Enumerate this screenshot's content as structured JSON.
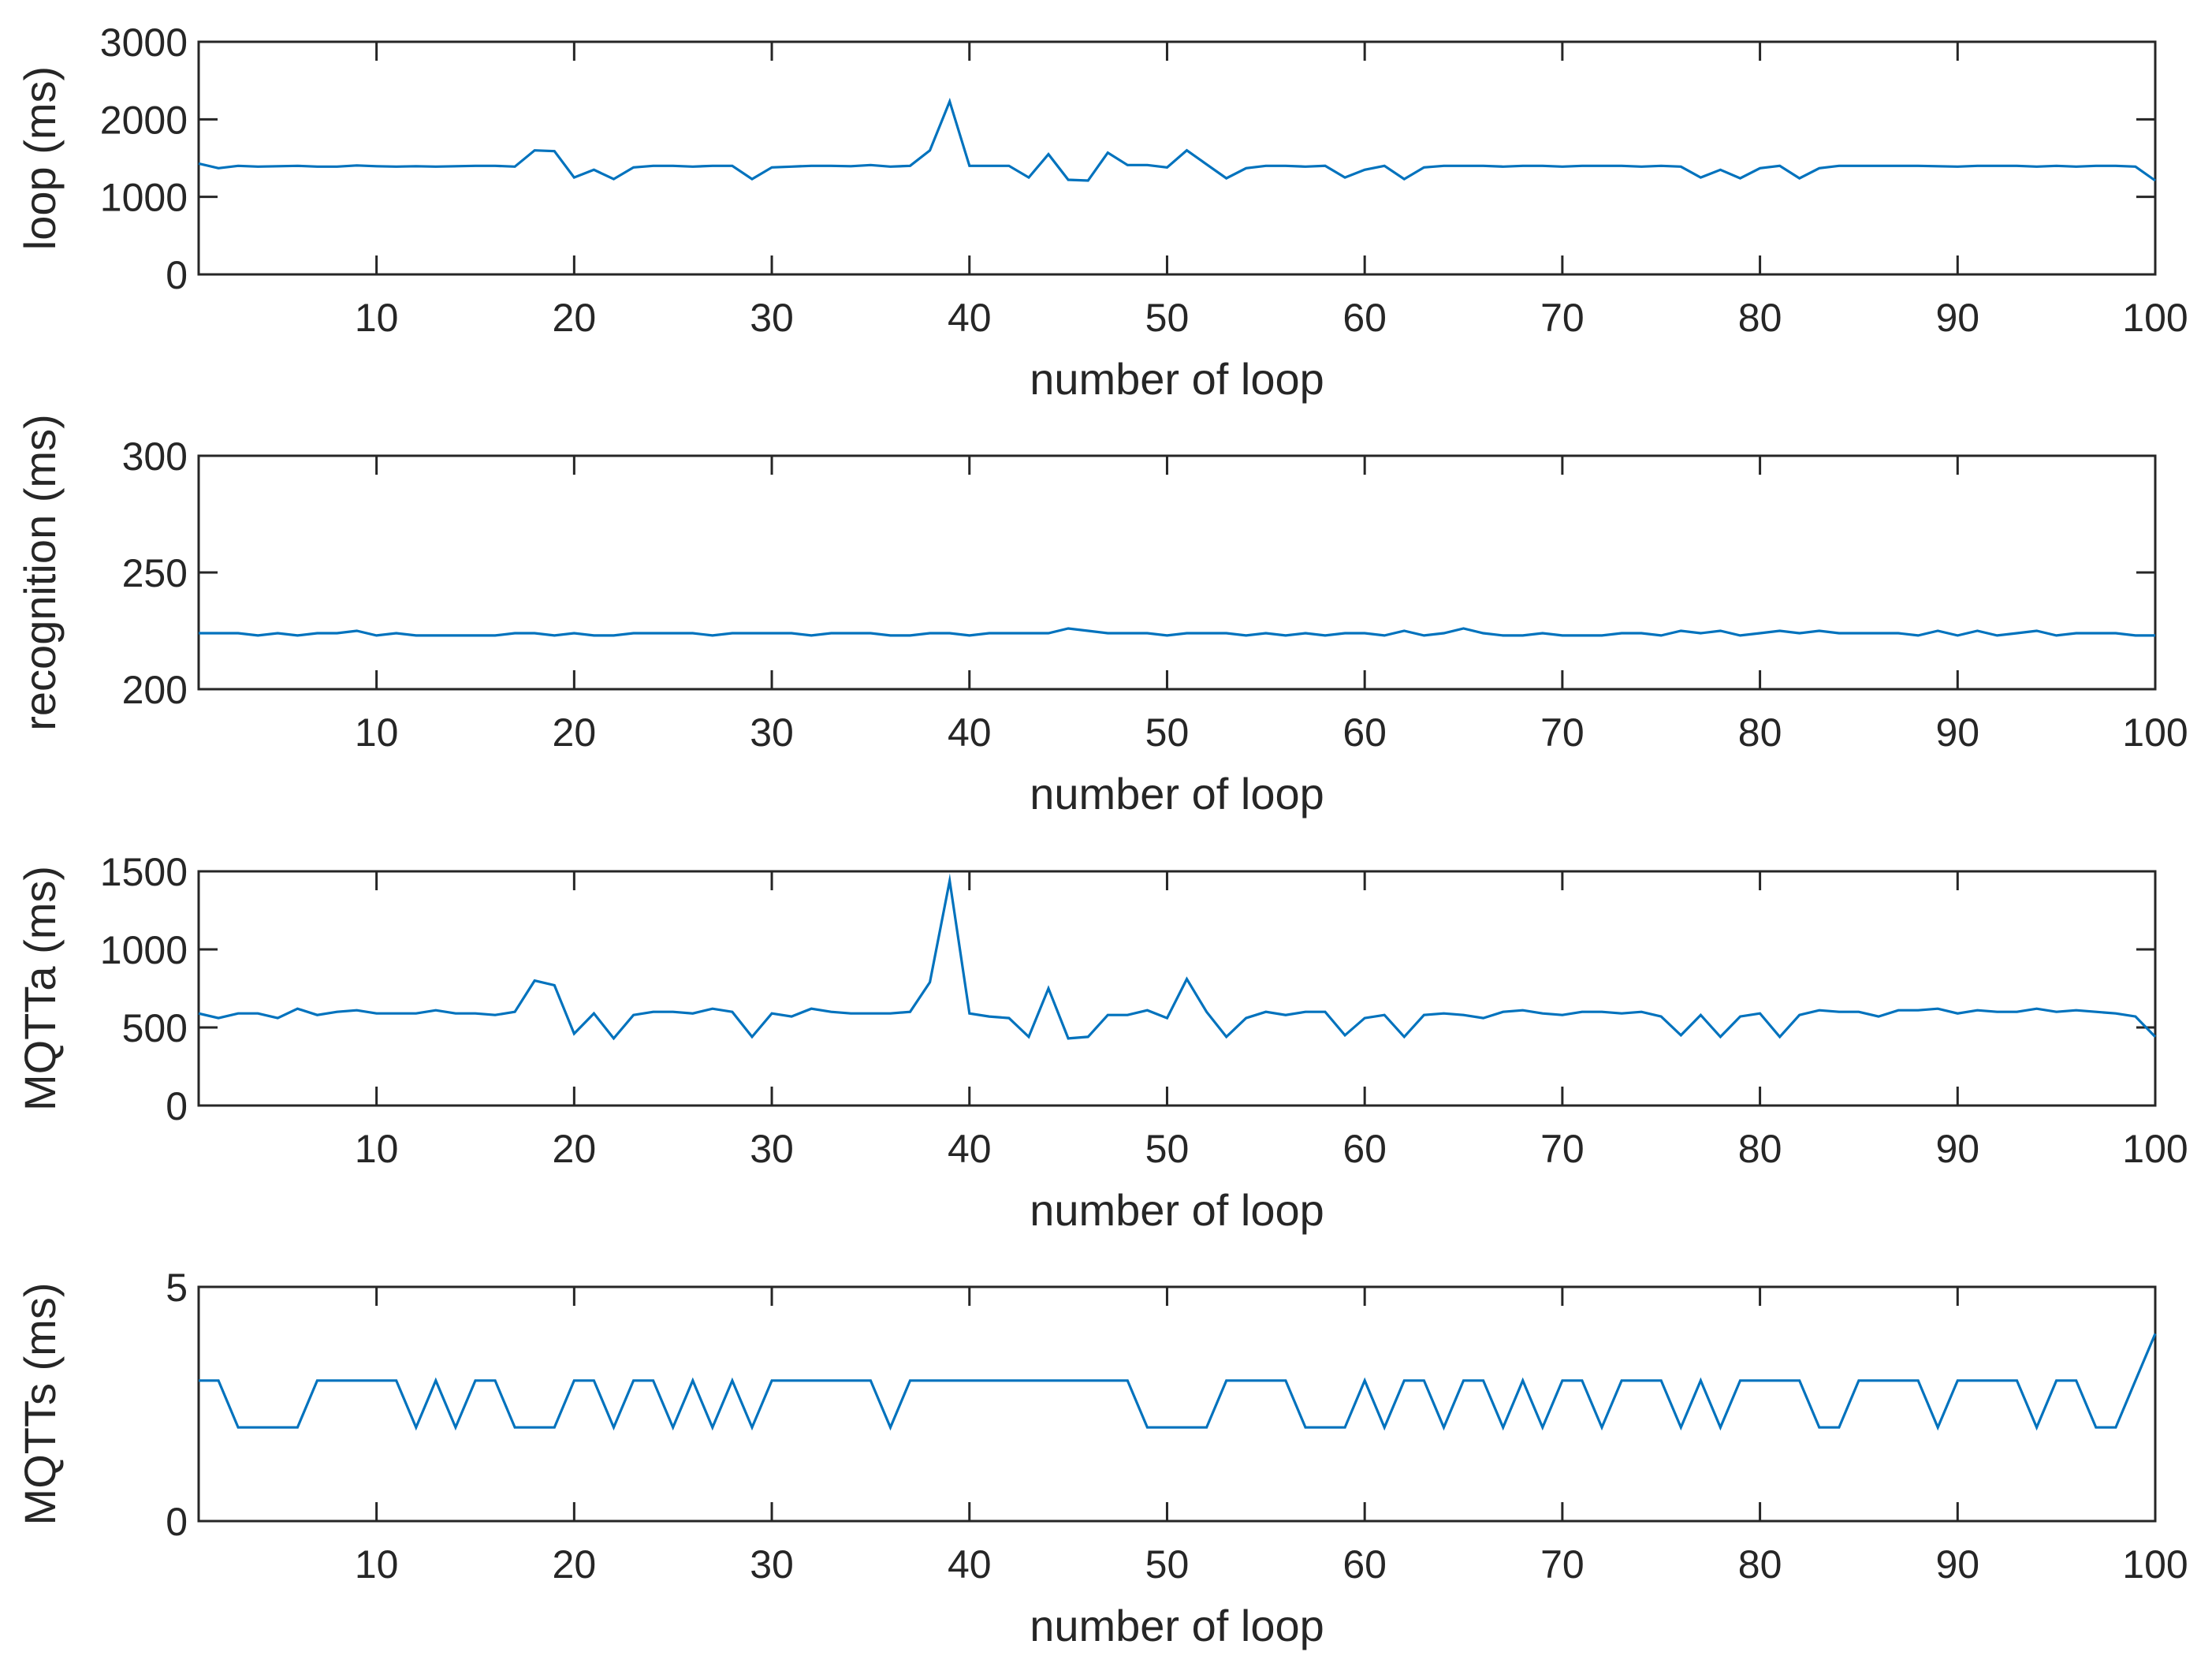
{
  "chart_data": [
    {
      "type": "line",
      "xlabel": "number of loop",
      "ylabel": "loop (ms)",
      "xlim": [
        1,
        100
      ],
      "ylim": [
        0,
        3000
      ],
      "xticks": [
        10,
        20,
        30,
        40,
        50,
        60,
        70,
        80,
        90,
        100
      ],
      "yticks": [
        0,
        1000,
        2000,
        3000
      ],
      "grid": false,
      "line_color": "#0072BD",
      "series": [
        {
          "values": [
            1430,
            1370,
            1400,
            1390,
            1395,
            1400,
            1390,
            1390,
            1405,
            1395,
            1390,
            1395,
            1390,
            1395,
            1400,
            1400,
            1390,
            1600,
            1590,
            1250,
            1350,
            1230,
            1380,
            1400,
            1400,
            1390,
            1400,
            1400,
            1230,
            1380,
            1390,
            1400,
            1400,
            1395,
            1410,
            1390,
            1400,
            1600,
            2230,
            1400,
            1400,
            1400,
            1250,
            1550,
            1220,
            1210,
            1570,
            1410,
            1410,
            1380,
            1600,
            1420,
            1240,
            1370,
            1400,
            1400,
            1390,
            1400,
            1250,
            1350,
            1400,
            1230,
            1380,
            1400,
            1400,
            1400,
            1390,
            1400,
            1400,
            1390,
            1400,
            1400,
            1400,
            1390,
            1400,
            1390,
            1250,
            1350,
            1240,
            1370,
            1400,
            1240,
            1370,
            1400,
            1400,
            1400,
            1400,
            1400,
            1395,
            1390,
            1400,
            1400,
            1400,
            1390,
            1400,
            1390,
            1400,
            1400,
            1390,
            1210
          ]
        }
      ]
    },
    {
      "type": "line",
      "xlabel": "number of loop",
      "ylabel": "recognition (ms)",
      "xlim": [
        1,
        100
      ],
      "ylim": [
        200,
        300
      ],
      "xticks": [
        10,
        20,
        30,
        40,
        50,
        60,
        70,
        80,
        90,
        100
      ],
      "yticks": [
        200,
        250,
        300
      ],
      "grid": false,
      "line_color": "#0072BD",
      "series": [
        {
          "values": [
            224,
            224,
            224,
            223,
            224,
            223,
            224,
            224,
            225,
            223,
            224,
            223,
            223,
            223,
            223,
            223,
            224,
            224,
            223,
            224,
            223,
            223,
            224,
            224,
            224,
            224,
            223,
            224,
            224,
            224,
            224,
            223,
            224,
            224,
            224,
            223,
            223,
            224,
            224,
            223,
            224,
            224,
            224,
            224,
            226,
            225,
            224,
            224,
            224,
            223,
            224,
            224,
            224,
            223,
            224,
            223,
            224,
            223,
            224,
            224,
            223,
            225,
            223,
            224,
            226,
            224,
            223,
            223,
            224,
            223,
            223,
            223,
            224,
            224,
            223,
            225,
            224,
            225,
            223,
            224,
            225,
            224,
            225,
            224,
            224,
            224,
            224,
            223,
            225,
            223,
            225,
            223,
            224,
            225,
            223,
            224,
            224,
            224,
            223,
            223
          ]
        }
      ]
    },
    {
      "type": "line",
      "xlabel": "number of loop",
      "ylabel": "MQTTa (ms)",
      "xlim": [
        1,
        100
      ],
      "ylim": [
        0,
        1500
      ],
      "xticks": [
        10,
        20,
        30,
        40,
        50,
        60,
        70,
        80,
        90,
        100
      ],
      "yticks": [
        0,
        500,
        1000,
        1500
      ],
      "grid": false,
      "line_color": "#0072BD",
      "series": [
        {
          "values": [
            590,
            560,
            590,
            590,
            560,
            620,
            580,
            600,
            610,
            590,
            590,
            590,
            610,
            590,
            590,
            580,
            600,
            800,
            770,
            460,
            590,
            430,
            580,
            600,
            600,
            590,
            620,
            600,
            440,
            590,
            570,
            620,
            600,
            590,
            590,
            590,
            600,
            790,
            1440,
            590,
            570,
            560,
            440,
            750,
            430,
            440,
            580,
            580,
            610,
            560,
            810,
            600,
            440,
            560,
            600,
            580,
            600,
            600,
            450,
            560,
            580,
            440,
            580,
            590,
            580,
            560,
            600,
            610,
            590,
            580,
            600,
            600,
            590,
            600,
            570,
            450,
            580,
            440,
            570,
            590,
            440,
            580,
            610,
            600,
            600,
            570,
            610,
            610,
            620,
            590,
            610,
            600,
            600,
            620,
            600,
            610,
            600,
            590,
            570,
            440
          ]
        }
      ]
    },
    {
      "type": "line",
      "xlabel": "number of loop",
      "ylabel": "MQTTs (ms)",
      "xlim": [
        1,
        100
      ],
      "ylim": [
        0,
        5
      ],
      "xticks": [
        10,
        20,
        30,
        40,
        50,
        60,
        70,
        80,
        90,
        100
      ],
      "yticks": [
        0,
        5
      ],
      "grid": false,
      "line_color": "#0072BD",
      "series": [
        {
          "values": [
            3,
            3,
            2,
            2,
            2,
            2,
            3,
            3,
            3,
            3,
            3,
            2,
            3,
            2,
            3,
            3,
            2,
            2,
            2,
            3,
            3,
            2,
            3,
            3,
            2,
            3,
            2,
            3,
            2,
            3,
            3,
            3,
            3,
            3,
            3,
            2,
            3,
            3,
            3,
            3,
            3,
            3,
            3,
            3,
            3,
            3,
            3,
            3,
            2,
            2,
            2,
            2,
            3,
            3,
            3,
            3,
            2,
            2,
            2,
            3,
            2,
            3,
            3,
            2,
            3,
            3,
            2,
            3,
            2,
            3,
            3,
            2,
            3,
            3,
            3,
            2,
            3,
            2,
            3,
            3,
            3,
            3,
            2,
            2,
            3,
            3,
            3,
            3,
            2,
            3,
            3,
            3,
            3,
            2,
            3,
            3,
            2,
            2,
            3,
            4
          ]
        }
      ]
    }
  ]
}
